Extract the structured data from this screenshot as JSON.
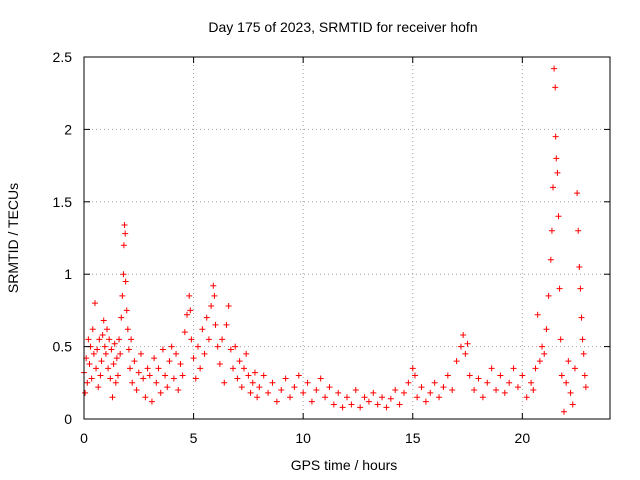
{
  "chart_data": {
    "type": "scatter",
    "title": "Day 175 of 2023, SRMTID for receiver hofn",
    "xlabel": "GPS time / hours",
    "ylabel": "SRMTID / TECUs",
    "xlim": [
      0,
      24
    ],
    "ylim": [
      0,
      2.5
    ],
    "x_ticks": [
      0,
      5,
      10,
      15,
      20
    ],
    "x_tick_labels": [
      "0",
      "5",
      "10",
      "15",
      "20"
    ],
    "y_ticks": [
      0,
      0.5,
      1,
      1.5,
      2,
      2.5
    ],
    "y_tick_labels": [
      "0",
      "0.5",
      "1",
      "1.5",
      "2",
      "2.5"
    ],
    "grid": true,
    "marker": "+",
    "color": "#ff0000",
    "series": [
      {
        "name": "SRMTID",
        "points": [
          [
            0.0,
            0.32
          ],
          [
            0.05,
            0.18
          ],
          [
            0.1,
            0.42
          ],
          [
            0.15,
            0.25
          ],
          [
            0.2,
            0.55
          ],
          [
            0.25,
            0.38
          ],
          [
            0.3,
            0.5
          ],
          [
            0.35,
            0.28
          ],
          [
            0.4,
            0.62
          ],
          [
            0.45,
            0.45
          ],
          [
            0.5,
            0.8
          ],
          [
            0.55,
            0.35
          ],
          [
            0.6,
            0.48
          ],
          [
            0.65,
            0.22
          ],
          [
            0.7,
            0.55
          ],
          [
            0.75,
            0.3
          ],
          [
            0.8,
            0.4
          ],
          [
            0.85,
            0.58
          ],
          [
            0.9,
            0.68
          ],
          [
            0.95,
            0.5
          ],
          [
            1.0,
            0.45
          ],
          [
            1.05,
            0.62
          ],
          [
            1.1,
            0.35
          ],
          [
            1.15,
            0.55
          ],
          [
            1.2,
            0.28
          ],
          [
            1.25,
            0.48
          ],
          [
            1.3,
            0.15
          ],
          [
            1.35,
            0.38
          ],
          [
            1.4,
            0.52
          ],
          [
            1.45,
            0.25
          ],
          [
            1.5,
            0.42
          ],
          [
            1.55,
            0.3
          ],
          [
            1.6,
            0.55
          ],
          [
            1.65,
            0.45
          ],
          [
            1.7,
            0.7
          ],
          [
            1.75,
            0.85
          ],
          [
            1.8,
            1.0
          ],
          [
            1.82,
            1.2
          ],
          [
            1.85,
            1.34
          ],
          [
            1.88,
            1.28
          ],
          [
            1.9,
            0.95
          ],
          [
            1.95,
            0.75
          ],
          [
            2.0,
            0.62
          ],
          [
            2.05,
            0.48
          ],
          [
            2.1,
            0.35
          ],
          [
            2.15,
            0.55
          ],
          [
            2.2,
            0.25
          ],
          [
            2.3,
            0.4
          ],
          [
            2.4,
            0.2
          ],
          [
            2.5,
            0.32
          ],
          [
            2.6,
            0.45
          ],
          [
            2.7,
            0.28
          ],
          [
            2.8,
            0.15
          ],
          [
            2.9,
            0.35
          ],
          [
            3.0,
            0.3
          ],
          [
            3.1,
            0.12
          ],
          [
            3.2,
            0.42
          ],
          [
            3.3,
            0.25
          ],
          [
            3.4,
            0.35
          ],
          [
            3.5,
            0.18
          ],
          [
            3.6,
            0.48
          ],
          [
            3.7,
            0.3
          ],
          [
            3.8,
            0.22
          ],
          [
            3.9,
            0.4
          ],
          [
            4.0,
            0.5
          ],
          [
            4.1,
            0.28
          ],
          [
            4.2,
            0.45
          ],
          [
            4.3,
            0.2
          ],
          [
            4.4,
            0.38
          ],
          [
            4.5,
            0.3
          ],
          [
            4.6,
            0.6
          ],
          [
            4.7,
            0.72
          ],
          [
            4.8,
            0.85
          ],
          [
            4.85,
            0.75
          ],
          [
            4.9,
            0.55
          ],
          [
            5.0,
            0.42
          ],
          [
            5.1,
            0.28
          ],
          [
            5.2,
            0.5
          ],
          [
            5.3,
            0.35
          ],
          [
            5.4,
            0.62
          ],
          [
            5.5,
            0.45
          ],
          [
            5.6,
            0.7
          ],
          [
            5.7,
            0.55
          ],
          [
            5.8,
            0.78
          ],
          [
            5.9,
            0.92
          ],
          [
            5.95,
            0.85
          ],
          [
            6.0,
            0.65
          ],
          [
            6.1,
            0.5
          ],
          [
            6.2,
            0.38
          ],
          [
            6.3,
            0.55
          ],
          [
            6.4,
            0.25
          ],
          [
            6.5,
            0.65
          ],
          [
            6.6,
            0.78
          ],
          [
            6.7,
            0.48
          ],
          [
            6.8,
            0.35
          ],
          [
            6.9,
            0.5
          ],
          [
            7.0,
            0.28
          ],
          [
            7.1,
            0.4
          ],
          [
            7.2,
            0.22
          ],
          [
            7.3,
            0.35
          ],
          [
            7.4,
            0.45
          ],
          [
            7.5,
            0.3
          ],
          [
            7.6,
            0.18
          ],
          [
            7.7,
            0.25
          ],
          [
            7.8,
            0.32
          ],
          [
            7.9,
            0.15
          ],
          [
            8.0,
            0.22
          ],
          [
            8.2,
            0.3
          ],
          [
            8.4,
            0.18
          ],
          [
            8.6,
            0.25
          ],
          [
            8.8,
            0.12
          ],
          [
            9.0,
            0.2
          ],
          [
            9.2,
            0.28
          ],
          [
            9.4,
            0.15
          ],
          [
            9.6,
            0.22
          ],
          [
            9.8,
            0.3
          ],
          [
            10.0,
            0.18
          ],
          [
            10.2,
            0.25
          ],
          [
            10.4,
            0.12
          ],
          [
            10.6,
            0.2
          ],
          [
            10.8,
            0.28
          ],
          [
            11.0,
            0.15
          ],
          [
            11.2,
            0.22
          ],
          [
            11.4,
            0.1
          ],
          [
            11.6,
            0.18
          ],
          [
            11.8,
            0.08
          ],
          [
            12.0,
            0.15
          ],
          [
            12.2,
            0.1
          ],
          [
            12.4,
            0.2
          ],
          [
            12.6,
            0.08
          ],
          [
            12.8,
            0.15
          ],
          [
            13.0,
            0.12
          ],
          [
            13.2,
            0.18
          ],
          [
            13.4,
            0.1
          ],
          [
            13.6,
            0.15
          ],
          [
            13.8,
            0.08
          ],
          [
            14.0,
            0.14
          ],
          [
            14.2,
            0.2
          ],
          [
            14.4,
            0.1
          ],
          [
            14.6,
            0.18
          ],
          [
            14.8,
            0.25
          ],
          [
            15.0,
            0.35
          ],
          [
            15.1,
            0.3
          ],
          [
            15.2,
            0.15
          ],
          [
            15.4,
            0.22
          ],
          [
            15.6,
            0.12
          ],
          [
            15.8,
            0.18
          ],
          [
            16.0,
            0.25
          ],
          [
            16.2,
            0.15
          ],
          [
            16.4,
            0.22
          ],
          [
            16.6,
            0.3
          ],
          [
            16.8,
            0.2
          ],
          [
            17.0,
            0.4
          ],
          [
            17.2,
            0.5
          ],
          [
            17.3,
            0.58
          ],
          [
            17.4,
            0.45
          ],
          [
            17.5,
            0.52
          ],
          [
            17.6,
            0.3
          ],
          [
            17.8,
            0.2
          ],
          [
            18.0,
            0.28
          ],
          [
            18.2,
            0.15
          ],
          [
            18.4,
            0.25
          ],
          [
            18.6,
            0.35
          ],
          [
            18.8,
            0.2
          ],
          [
            19.0,
            0.3
          ],
          [
            19.2,
            0.18
          ],
          [
            19.4,
            0.25
          ],
          [
            19.6,
            0.35
          ],
          [
            19.8,
            0.22
          ],
          [
            20.0,
            0.3
          ],
          [
            20.2,
            0.15
          ],
          [
            20.4,
            0.25
          ],
          [
            20.5,
            0.2
          ],
          [
            20.6,
            0.35
          ],
          [
            20.7,
            0.72
          ],
          [
            20.8,
            0.4
          ],
          [
            20.9,
            0.5
          ],
          [
            21.0,
            0.45
          ],
          [
            21.1,
            0.62
          ],
          [
            21.2,
            0.85
          ],
          [
            21.3,
            1.1
          ],
          [
            21.35,
            1.3
          ],
          [
            21.4,
            1.6
          ],
          [
            21.45,
            2.42
          ],
          [
            21.5,
            2.29
          ],
          [
            21.52,
            1.95
          ],
          [
            21.55,
            1.8
          ],
          [
            21.6,
            1.7
          ],
          [
            21.65,
            1.4
          ],
          [
            21.7,
            0.9
          ],
          [
            21.75,
            0.55
          ],
          [
            21.8,
            0.3
          ],
          [
            21.9,
            0.05
          ],
          [
            22.0,
            0.25
          ],
          [
            22.1,
            0.4
          ],
          [
            22.2,
            0.18
          ],
          [
            22.3,
            0.1
          ],
          [
            22.4,
            0.35
          ],
          [
            22.5,
            1.56
          ],
          [
            22.55,
            1.3
          ],
          [
            22.6,
            1.05
          ],
          [
            22.65,
            0.9
          ],
          [
            22.7,
            0.7
          ],
          [
            22.75,
            0.55
          ],
          [
            22.8,
            0.45
          ],
          [
            22.85,
            0.3
          ],
          [
            22.9,
            0.22
          ]
        ]
      }
    ]
  }
}
